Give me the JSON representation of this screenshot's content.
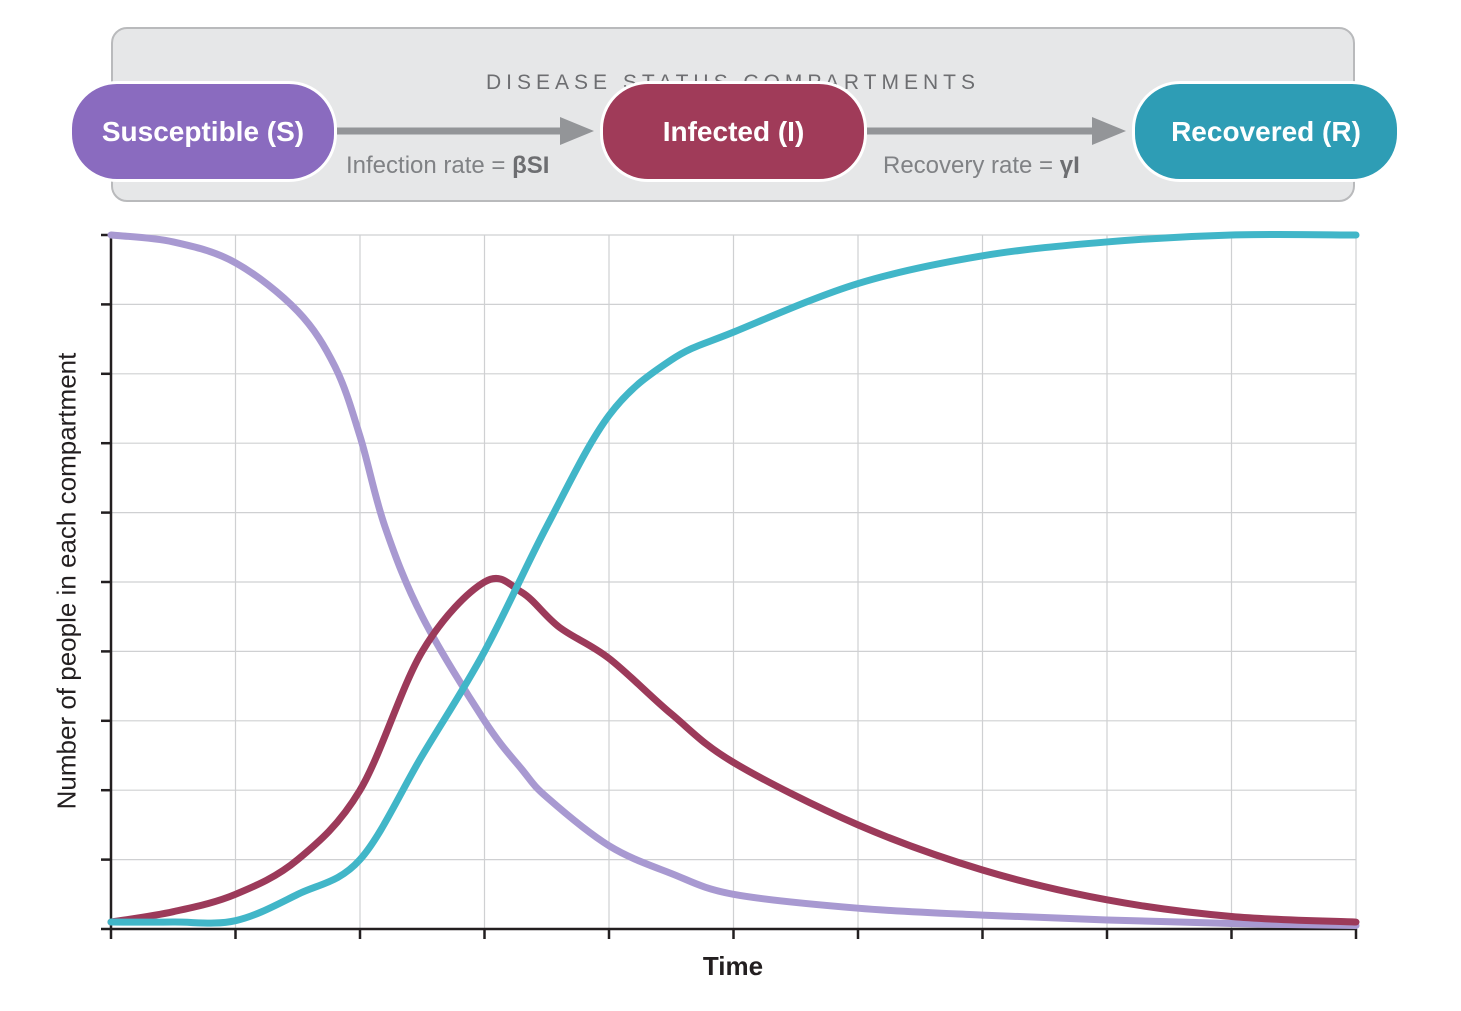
{
  "header": {
    "title": "DISEASE STATUS COMPARTMENTS",
    "compartments": [
      {
        "label": "Susceptible (S)",
        "color": "#8a6bbf"
      },
      {
        "label": "Infected (I)",
        "color": "#a03b59"
      },
      {
        "label": "Recovered (R)",
        "color": "#2e9db5"
      }
    ],
    "transitions": [
      {
        "prefix": "Infection rate = ",
        "formula": "βSI"
      },
      {
        "prefix": "Recovery rate = ",
        "formula": "γI"
      }
    ],
    "arrow_color": "#939598"
  },
  "chart_data": {
    "type": "line",
    "xlabel": "Time",
    "ylabel": "Number of people in each compartment",
    "xlim": [
      0,
      10
    ],
    "ylim": [
      0,
      10
    ],
    "grid": true,
    "series": [
      {
        "color": "#a899d1",
        "x": [
          0,
          0.5,
          1,
          1.5,
          1.8,
          2,
          2.2,
          2.5,
          3,
          3.3,
          3.5,
          4,
          4.5,
          5,
          6,
          7,
          8,
          9,
          10
        ],
        "y": [
          10,
          9.9,
          9.6,
          8.9,
          8.1,
          7.1,
          5.8,
          4.5,
          3.0,
          2.3,
          1.9,
          1.2,
          0.8,
          0.5,
          0.3,
          0.2,
          0.13,
          0.08,
          0.05
        ]
      },
      {
        "color": "#9c3a5a",
        "x": [
          0,
          0.5,
          1,
          1.5,
          2,
          2.5,
          3,
          3.3,
          3.6,
          4,
          4.5,
          5,
          6,
          7,
          8,
          9,
          10
        ],
        "y": [
          0.1,
          0.25,
          0.5,
          1.0,
          2.0,
          4.0,
          5.0,
          4.85,
          4.35,
          3.9,
          3.1,
          2.4,
          1.5,
          0.85,
          0.42,
          0.18,
          0.1
        ]
      },
      {
        "color": "#41b6c8",
        "x": [
          0,
          0.5,
          1,
          1.5,
          2,
          2.5,
          3,
          3.5,
          4,
          4.5,
          5,
          6,
          7,
          8,
          9,
          10
        ],
        "y": [
          0.1,
          0.1,
          0.12,
          0.5,
          1.0,
          2.5,
          4.0,
          5.8,
          7.4,
          8.2,
          8.6,
          9.3,
          9.7,
          9.9,
          10,
          10
        ]
      }
    ]
  }
}
